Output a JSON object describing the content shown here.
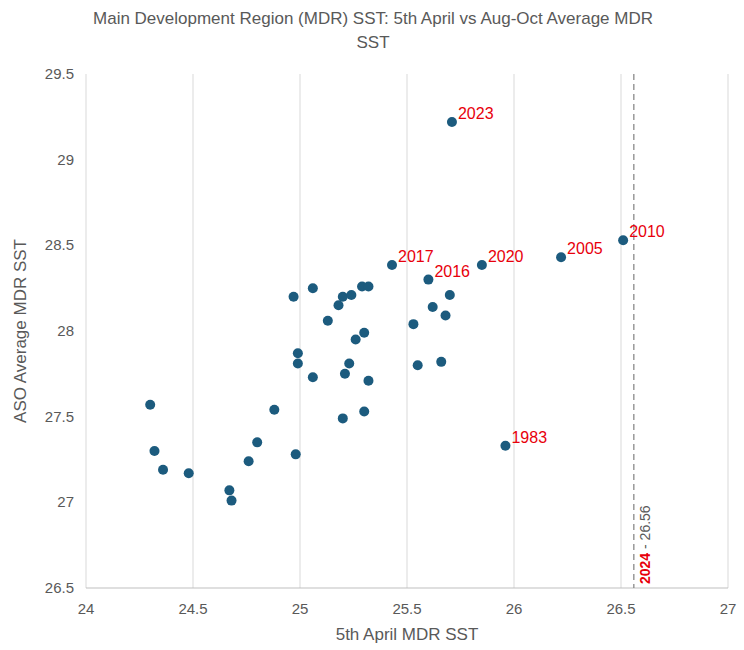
{
  "chart_data": {
    "type": "scatter",
    "title": "Main Development Region (MDR) SST: 5th April vs Aug-Oct Average MDR SST",
    "x_label": "5th April MDR SST",
    "y_label": "ASO Average MDR SST",
    "x": [
      25.71,
      25.43,
      25.6,
      25.85,
      26.22,
      26.51,
      25.96,
      24.3,
      24.32,
      24.36,
      24.48,
      24.67,
      24.68,
      24.76,
      24.8,
      24.88,
      24.97,
      24.98,
      24.99,
      24.99,
      25.06,
      25.06,
      25.13,
      25.18,
      25.2,
      25.2,
      25.21,
      25.23,
      25.24,
      25.26,
      25.29,
      25.32,
      25.3,
      25.3,
      25.32,
      25.53,
      25.55,
      25.62,
      25.66,
      25.68,
      25.7
    ],
    "values": [
      29.22,
      28.385,
      28.3,
      28.385,
      28.43,
      28.53,
      27.33,
      27.57,
      27.3,
      27.19,
      27.17,
      27.07,
      27.01,
      27.24,
      27.35,
      27.54,
      28.2,
      27.28,
      27.87,
      27.81,
      28.25,
      27.73,
      28.06,
      28.15,
      28.2,
      27.49,
      27.75,
      27.81,
      28.21,
      27.95,
      28.26,
      28.26,
      27.99,
      27.53,
      27.71,
      28.04,
      27.8,
      28.14,
      27.82,
      28.09,
      28.21
    ],
    "labels": [
      "2023",
      "2017",
      "2016",
      "2020",
      "2005",
      "2010",
      "1983",
      null,
      null,
      null,
      null,
      null,
      null,
      null,
      null,
      null,
      null,
      null,
      null,
      null,
      null,
      null,
      null,
      null,
      null,
      null,
      null,
      null,
      null,
      null,
      null,
      null,
      null,
      null,
      null,
      null,
      null,
      null,
      null,
      null,
      null
    ],
    "color": "#1c5b7e",
    "marker": "circle",
    "xlim": [
      24,
      27
    ],
    "ylim": [
      26.5,
      29.5
    ],
    "xticks": [
      24,
      24.5,
      25,
      25.5,
      26,
      26.5,
      27
    ],
    "yticks": [
      26.5,
      27,
      27.5,
      28,
      28.5,
      29,
      29.5
    ],
    "grid": "x",
    "reference_line": {
      "x": 26.56,
      "text": "2024 - 26.56",
      "line_style": "dashed"
    }
  }
}
